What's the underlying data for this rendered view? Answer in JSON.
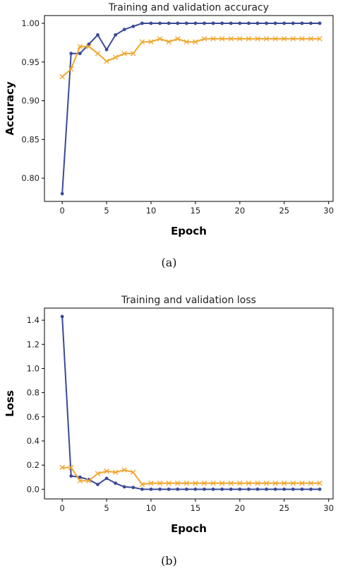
{
  "colors": {
    "training": "#3a4a96",
    "validation": "#f0a62d",
    "axes": "#000000"
  },
  "chart_data": [
    {
      "type": "line",
      "title": "Training and validation accuracy",
      "xlabel": "Epoch",
      "ylabel": "Accuracy",
      "xlim": [
        -2,
        30.5
      ],
      "ylim": [
        0.77,
        1.01
      ],
      "xticks": [
        0,
        5,
        10,
        15,
        20,
        25,
        30
      ],
      "xtick_labels": [
        "0",
        "5",
        "10",
        "15",
        "20",
        "25",
        "30"
      ],
      "yticks": [
        0.8,
        0.85,
        0.9,
        0.95,
        1.0
      ],
      "ytick_labels": [
        "0.80",
        "0.85",
        "0.90",
        "0.95",
        "1.00"
      ],
      "grid": false,
      "caption": "(a)",
      "x": [
        0,
        1,
        2,
        3,
        4,
        5,
        6,
        7,
        8,
        9,
        10,
        11,
        12,
        13,
        14,
        15,
        16,
        17,
        18,
        19,
        20,
        21,
        22,
        23,
        24,
        25,
        26,
        27,
        28,
        29
      ],
      "series": [
        {
          "marker": "dot",
          "color": "#3a4a96",
          "values": [
            0.78,
            0.961,
            0.961,
            0.973,
            0.985,
            0.966,
            0.985,
            0.992,
            0.996,
            1.0,
            1.0,
            1.0,
            1.0,
            1.0,
            1.0,
            1.0,
            1.0,
            1.0,
            1.0,
            1.0,
            1.0,
            1.0,
            1.0,
            1.0,
            1.0,
            1.0,
            1.0,
            1.0,
            1.0,
            1.0
          ]
        },
        {
          "marker": "x",
          "color": "#f0a62d",
          "values": [
            0.931,
            0.941,
            0.97,
            0.97,
            0.961,
            0.951,
            0.956,
            0.961,
            0.961,
            0.976,
            0.976,
            0.98,
            0.976,
            0.98,
            0.976,
            0.976,
            0.98,
            0.98,
            0.98,
            0.98,
            0.98,
            0.98,
            0.98,
            0.98,
            0.98,
            0.98,
            0.98,
            0.98,
            0.98,
            0.98
          ]
        }
      ]
    },
    {
      "type": "line",
      "title": "Training and validation loss",
      "xlabel": "Epoch",
      "ylabel": "Loss",
      "xlim": [
        -2,
        30.5
      ],
      "ylim": [
        -0.08,
        1.5
      ],
      "xticks": [
        0,
        5,
        10,
        15,
        20,
        25,
        30
      ],
      "xtick_labels": [
        "0",
        "5",
        "10",
        "15",
        "20",
        "25",
        "30"
      ],
      "yticks": [
        0.0,
        0.2,
        0.4,
        0.6,
        0.8,
        1.0,
        1.2,
        1.4
      ],
      "ytick_labels": [
        "0.0",
        "0.2",
        "0.4",
        "0.6",
        "0.8",
        "1.0",
        "1.2",
        "1.4"
      ],
      "grid": false,
      "caption": "(b)",
      "x": [
        0,
        1,
        2,
        3,
        4,
        5,
        6,
        7,
        8,
        9,
        10,
        11,
        12,
        13,
        14,
        15,
        16,
        17,
        18,
        19,
        20,
        21,
        22,
        23,
        24,
        25,
        26,
        27,
        28,
        29
      ],
      "series": [
        {
          "marker": "dot",
          "color": "#3a4a96",
          "values": [
            1.43,
            0.11,
            0.1,
            0.08,
            0.04,
            0.09,
            0.05,
            0.02,
            0.015,
            0.0,
            0.0,
            0.0,
            0.0,
            0.0,
            0.0,
            0.0,
            0.0,
            0.0,
            0.0,
            0.0,
            0.0,
            0.0,
            0.0,
            0.0,
            0.0,
            0.0,
            0.0,
            0.0,
            0.0,
            0.0
          ]
        },
        {
          "marker": "x",
          "color": "#f0a62d",
          "values": [
            0.18,
            0.18,
            0.07,
            0.07,
            0.13,
            0.15,
            0.14,
            0.16,
            0.14,
            0.04,
            0.05,
            0.05,
            0.05,
            0.05,
            0.05,
            0.05,
            0.05,
            0.05,
            0.05,
            0.05,
            0.05,
            0.05,
            0.05,
            0.05,
            0.05,
            0.05,
            0.05,
            0.05,
            0.05,
            0.05
          ]
        }
      ]
    }
  ]
}
